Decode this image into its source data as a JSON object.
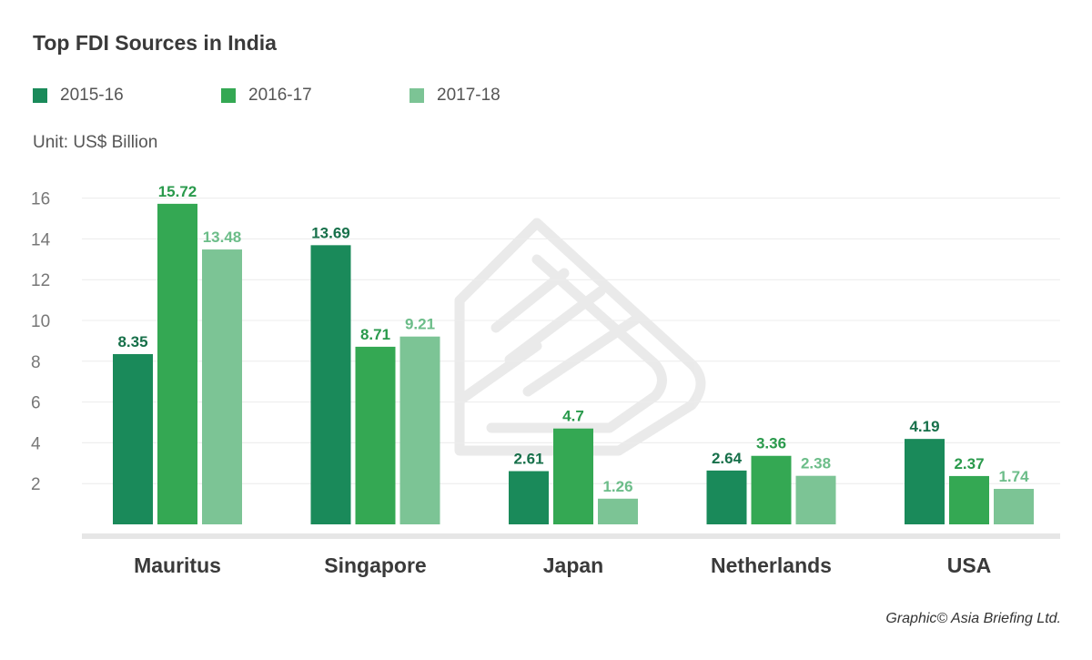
{
  "chart_data": {
    "type": "bar",
    "title": "Top FDI Sources in India",
    "unit": "Unit: US$ Billion",
    "categories": [
      "Mauritus",
      "Singapore",
      "Japan",
      "Netherlands",
      "USA"
    ],
    "series": [
      {
        "name": "2015-16",
        "color": "#1a8a5a",
        "values": [
          8.35,
          13.69,
          2.61,
          2.64,
          4.19
        ],
        "label_color": "#17704a"
      },
      {
        "name": "2016-17",
        "color": "#34a853",
        "values": [
          15.72,
          8.71,
          4.7,
          3.36,
          2.37
        ],
        "label_color": "#2a9a4c"
      },
      {
        "name": "2017-18",
        "color": "#7cc495",
        "values": [
          13.48,
          9.21,
          1.26,
          2.38,
          1.74
        ],
        "label_color": "#6cbd89"
      }
    ],
    "yticks": [
      2,
      4,
      6,
      8,
      10,
      12,
      14,
      16
    ],
    "ylim": [
      0,
      16
    ],
    "grid": true,
    "legend_position": "top-left"
  },
  "footer": "Graphic© Asia Briefing Ltd.",
  "watermark_icon": "asia-briefing-logo-watermark"
}
